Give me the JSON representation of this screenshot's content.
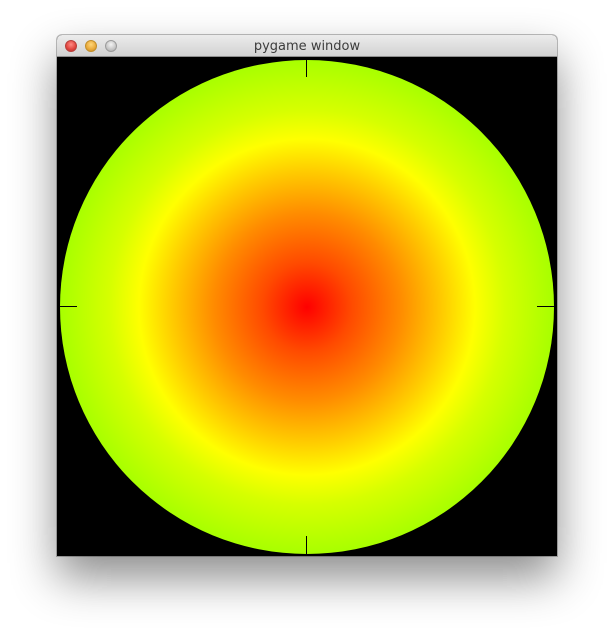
{
  "window": {
    "title": "pygame window"
  },
  "colors": {
    "center": "#ff0000",
    "mid": "#ffff00",
    "edge": "#a8ff00",
    "background": "#000000"
  },
  "icons": [
    "close-icon",
    "minimize-icon",
    "zoom-icon"
  ]
}
